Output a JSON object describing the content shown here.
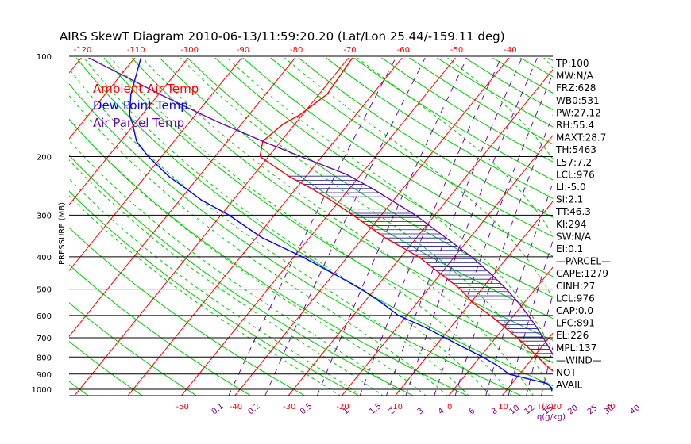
{
  "title": "AIRS SkewT Diagram 2010-06-13/11:59:20.20 (Lat/Lon 25.44/-159.11 deg)",
  "ylabel": "PRESSURE (MB)",
  "unit_labels": {
    "temp": "T(C)",
    "mixing": "q(g/kg)"
  },
  "legend": [
    {
      "label": "Ambient Air Temp",
      "color": "#ff0000"
    },
    {
      "label": "Dew Point Temp",
      "color": "#0000ff"
    },
    {
      "label": "Air Parcel Temp",
      "color": "#6a0dad"
    }
  ],
  "stats": [
    "TP:100",
    "MW:N/A",
    "FRZ:628",
    "WB0:531",
    "PW:27.12",
    "RH:55.4",
    "MAXT:28.7",
    "TH:5463",
    "L57:7.2",
    "LCL:976",
    "LI:-5.0",
    "SI:2.1",
    "TT:46.3",
    "KI:294",
    "SW:N/A",
    "EI:0.1",
    "—PARCEL—",
    "CAPE:1279",
    "CINH:27",
    "LCL:976",
    "CAP:0.0",
    "LFC:891",
    "EL:226",
    "MPL:137",
    "—WIND—",
    "NOT",
    "AVAIL"
  ],
  "colors": {
    "dry_adiabat": "#00cc00",
    "moist_adiabat": "#00cc00",
    "isotherm": "#ff0000",
    "mixing_ratio": "#6a0dad",
    "axis_labels": "#ff0000",
    "mixing_labels": "#800080"
  },
  "chart_data": {
    "type": "line",
    "title": "AIRS SkewT Diagram 2010-06-13/11:59:20.20 (Lat/Lon 25.44/-159.11 deg)",
    "ylabel": "PRESSURE (MB)",
    "xlabel": "T(C)",
    "y_scale": "log",
    "ylim": [
      1050,
      100
    ],
    "pressure_ticks": [
      100,
      200,
      300,
      400,
      500,
      600,
      700,
      800,
      900,
      1000
    ],
    "top_temp_ticks": [
      -120,
      -110,
      -100,
      -90,
      -80,
      -70,
      -60,
      -50,
      -40
    ],
    "bottom_temp_ticks": [
      -50,
      -40,
      -30,
      -20,
      -10,
      0,
      10,
      20,
      30
    ],
    "mixing_ratio_ticks": [
      "0.1",
      "0.2",
      "0.5",
      "1",
      "1.5",
      "2",
      "3",
      "4",
      "6",
      "8",
      "10",
      "12",
      "15",
      "20",
      "25",
      "30",
      "40"
    ],
    "mixing_ratio_values": [
      0.1,
      0.2,
      0.5,
      1,
      1.5,
      2,
      3,
      4,
      6,
      8,
      10,
      12,
      15,
      20,
      25,
      30,
      40
    ],
    "series": [
      {
        "name": "Ambient Air Temp",
        "color": "#ff0000",
        "points": [
          [
            1013,
            26.6
          ],
          [
            990,
            22.7
          ],
          [
            950,
            20.5
          ],
          [
            900,
            16.9
          ],
          [
            850,
            13.8
          ],
          [
            800,
            10.8
          ],
          [
            750,
            7.6
          ],
          [
            700,
            4.0
          ],
          [
            650,
            0.0
          ],
          [
            600,
            -4.4
          ],
          [
            550,
            -9.6
          ],
          [
            500,
            -14.0
          ],
          [
            450,
            -20.0
          ],
          [
            400,
            -26.7
          ],
          [
            350,
            -36.0
          ],
          [
            300,
            -45.3
          ],
          [
            270,
            -51.8
          ],
          [
            250,
            -57.0
          ],
          [
            230,
            -63.0
          ],
          [
            200,
            -71.6
          ],
          [
            180,
            -73.4
          ],
          [
            160,
            -72.2
          ],
          [
            150,
            -70.5
          ],
          [
            130,
            -68.5
          ],
          [
            100,
            -69.3
          ]
        ]
      },
      {
        "name": "Dew Point Temp",
        "color": "#0000ff",
        "points": [
          [
            1013,
            18.6
          ],
          [
            990,
            18.1
          ],
          [
            960,
            16.5
          ],
          [
            900,
            8.0
          ],
          [
            850,
            4.7
          ],
          [
            800,
            0.5
          ],
          [
            750,
            -4.4
          ],
          [
            700,
            -9.5
          ],
          [
            650,
            -15.0
          ],
          [
            600,
            -21.6
          ],
          [
            550,
            -26.6
          ],
          [
            500,
            -32.5
          ],
          [
            450,
            -40.0
          ],
          [
            400,
            -48.5
          ],
          [
            350,
            -59.0
          ],
          [
            300,
            -68.5
          ],
          [
            270,
            -76.0
          ],
          [
            250,
            -80.5
          ],
          [
            230,
            -85.5
          ],
          [
            200,
            -92.5
          ],
          [
            180,
            -97.0
          ],
          [
            160,
            -100.3
          ],
          [
            150,
            -102.3
          ],
          [
            130,
            -105.2
          ],
          [
            100,
            -109.0
          ]
        ]
      },
      {
        "name": "Air Parcel Temp",
        "color": "#6a0dad",
        "points": [
          [
            1013,
            26.6
          ],
          [
            976,
            22.8
          ],
          [
            950,
            21.4
          ],
          [
            900,
            18.6
          ],
          [
            850,
            16.2
          ],
          [
            800,
            13.9
          ],
          [
            750,
            11.5
          ],
          [
            700,
            8.9
          ],
          [
            650,
            6.0
          ],
          [
            600,
            2.7
          ],
          [
            550,
            -1.0
          ],
          [
            500,
            -5.4
          ],
          [
            450,
            -10.6
          ],
          [
            400,
            -16.8
          ],
          [
            350,
            -24.6
          ],
          [
            300,
            -33.6
          ],
          [
            250,
            -45.6
          ],
          [
            226,
            -52.8
          ],
          [
            200,
            -64.0
          ],
          [
            180,
            -73.4
          ],
          [
            160,
            -83.4
          ],
          [
            150,
            -88.6
          ],
          [
            130,
            -99.8
          ],
          [
            100,
            -119.4
          ]
        ]
      }
    ]
  }
}
